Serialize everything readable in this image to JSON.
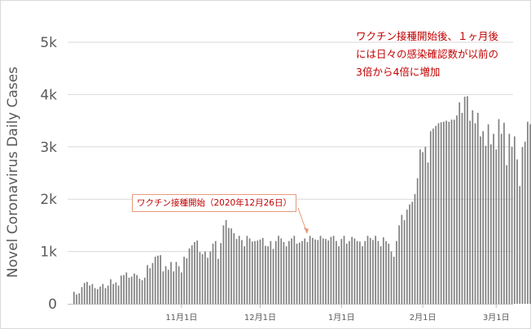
{
  "chart_data": {
    "type": "bar",
    "ylabel": "Novel Coronavirus Daily Cases",
    "ylim": [
      0,
      5000
    ],
    "yticks": [
      {
        "value": 0,
        "label": "0"
      },
      {
        "value": 1000,
        "label": "1k"
      },
      {
        "value": 2000,
        "label": "2k"
      },
      {
        "value": 3000,
        "label": "3k"
      },
      {
        "value": 4000,
        "label": "4k"
      },
      {
        "value": 5000,
        "label": "5k"
      }
    ],
    "xticks": [
      {
        "index": 41,
        "label": "11月1日"
      },
      {
        "index": 71,
        "label": "12月1日"
      },
      {
        "index": 102,
        "label": "1月1日"
      },
      {
        "index": 133,
        "label": "2月1日"
      },
      {
        "index": 161,
        "label": "3月1日"
      }
    ],
    "grid": true,
    "bar_color": "#808080",
    "values": [
      230,
      180,
      200,
      320,
      400,
      420,
      350,
      380,
      300,
      280,
      330,
      380,
      300,
      350,
      470,
      380,
      410,
      350,
      540,
      550,
      600,
      500,
      520,
      580,
      550,
      480,
      450,
      500,
      740,
      680,
      780,
      900,
      920,
      930,
      620,
      720,
      650,
      800,
      620,
      800,
      720,
      600,
      900,
      870,
      1060,
      1120,
      1180,
      1210,
      990,
      950,
      1000,
      880,
      1000,
      1150,
      1200,
      860,
      1160,
      1500,
      1600,
      1450,
      1440,
      1350,
      1240,
      1300,
      1220,
      1100,
      1300,
      1250,
      1190,
      1200,
      1210,
      1230,
      1260,
      1110,
      1100,
      1200,
      1050,
      1200,
      1300,
      1250,
      1180,
      1100,
      1200,
      1250,
      1300,
      1150,
      1170,
      1200,
      1250,
      1180,
      1300,
      1260,
      1230,
      1220,
      1300,
      1250,
      1240,
      1210,
      1280,
      1300,
      1200,
      1100,
      1240,
      1300,
      1150,
      1200,
      1280,
      1250,
      1200,
      1190,
      1100,
      1200,
      1300,
      1260,
      1220,
      1300,
      1200,
      1100,
      1270,
      1200,
      1150,
      1000,
      900,
      1200,
      1500,
      1700,
      1600,
      1800,
      1900,
      1950,
      2100,
      2400,
      2950,
      2900,
      3000,
      2700,
      3300,
      3350,
      3400,
      3450,
      3470,
      3480,
      3500,
      3480,
      3520,
      3520,
      3600,
      3850,
      3650,
      3960,
      3970,
      3500,
      3700,
      3450,
      3650,
      3200,
      3300,
      3020,
      3430,
      3050,
      3250,
      2950,
      3530,
      3250,
      3460,
      2650,
      3250,
      3000,
      3200,
      2760,
      2250,
      3000,
      3100,
      3480,
      3430,
      2900,
      2520,
      2700
    ],
    "annotations": [
      {
        "text": "ワクチン接種開始（2020年12月26日）",
        "target_index": 91
      },
      {
        "text": "ワクチン接種開始後、１ヶ月後\nには日々の感染確認数が以前の\n3倍から4倍に増加"
      }
    ]
  }
}
